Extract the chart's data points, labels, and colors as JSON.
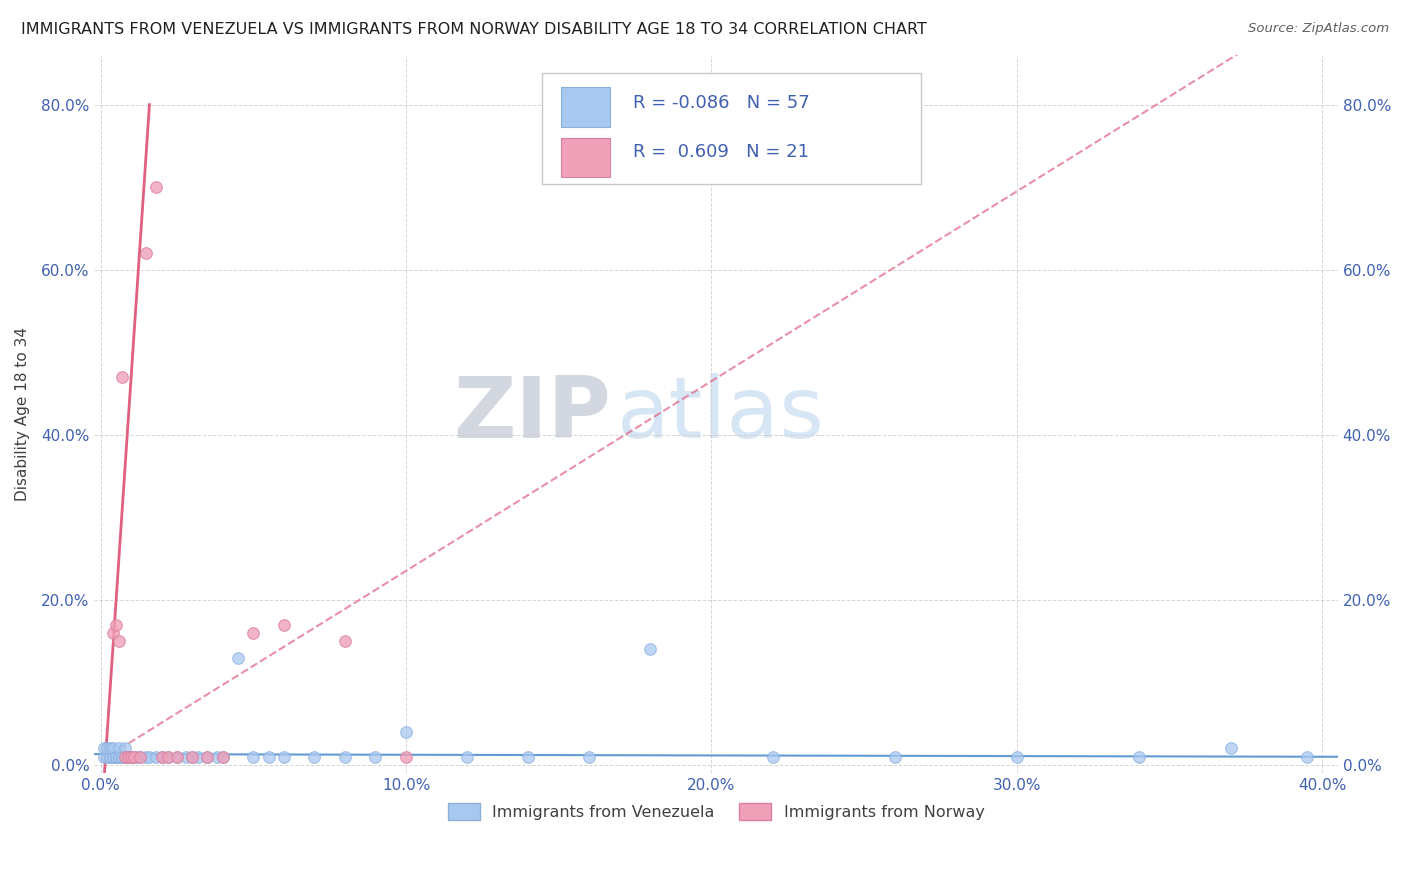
{
  "title": "IMMIGRANTS FROM VENEZUELA VS IMMIGRANTS FROM NORWAY DISABILITY AGE 18 TO 34 CORRELATION CHART",
  "source": "Source: ZipAtlas.com",
  "ylabel": "Disability Age 18 to 34",
  "xlim": [
    -0.002,
    0.405
  ],
  "ylim": [
    -0.01,
    0.86
  ],
  "xticks": [
    0.0,
    0.1,
    0.2,
    0.3,
    0.4
  ],
  "xtick_labels": [
    "0.0%",
    "10.0%",
    "20.0%",
    "30.0%",
    "40.0%"
  ],
  "yticks": [
    0.0,
    0.2,
    0.4,
    0.6,
    0.8
  ],
  "ytick_labels": [
    "0.0%",
    "20.0%",
    "40.0%",
    "60.0%",
    "80.0%"
  ],
  "watermark_zip": "ZIP",
  "watermark_atlas": "atlas",
  "legend_labels": [
    "Immigrants from Venezuela",
    "Immigrants from Norway"
  ],
  "R_venezuela": -0.086,
  "N_venezuela": 57,
  "R_norway": 0.609,
  "N_norway": 21,
  "color_venezuela": "#a8c8f0",
  "color_norway": "#f0a0b8",
  "trendline_venezuela_color": "#5090d0",
  "trendline_norway_color": "#e06080",
  "background_color": "#ffffff",
  "grid_color": "#cccccc",
  "title_color": "#202020",
  "axis_color": "#4060b0",
  "venezuela_x": [
    0.001,
    0.001,
    0.002,
    0.002,
    0.003,
    0.003,
    0.003,
    0.004,
    0.004,
    0.004,
    0.005,
    0.005,
    0.005,
    0.006,
    0.006,
    0.006,
    0.007,
    0.007,
    0.008,
    0.008,
    0.009,
    0.009,
    0.01,
    0.01,
    0.011,
    0.012,
    0.013,
    0.015,
    0.016,
    0.018,
    0.02,
    0.022,
    0.025,
    0.028,
    0.03,
    0.032,
    0.035,
    0.038,
    0.04,
    0.045,
    0.05,
    0.055,
    0.06,
    0.07,
    0.08,
    0.09,
    0.1,
    0.12,
    0.14,
    0.16,
    0.18,
    0.22,
    0.26,
    0.3,
    0.34,
    0.37,
    0.395
  ],
  "venezuela_y": [
    0.01,
    0.02,
    0.01,
    0.02,
    0.01,
    0.01,
    0.02,
    0.01,
    0.01,
    0.02,
    0.01,
    0.01,
    0.01,
    0.01,
    0.01,
    0.02,
    0.01,
    0.01,
    0.01,
    0.02,
    0.01,
    0.01,
    0.01,
    0.01,
    0.01,
    0.01,
    0.01,
    0.01,
    0.01,
    0.01,
    0.01,
    0.01,
    0.01,
    0.01,
    0.01,
    0.01,
    0.01,
    0.01,
    0.01,
    0.13,
    0.01,
    0.01,
    0.01,
    0.01,
    0.01,
    0.01,
    0.04,
    0.01,
    0.01,
    0.01,
    0.14,
    0.01,
    0.01,
    0.01,
    0.01,
    0.02,
    0.01
  ],
  "norway_x": [
    0.004,
    0.005,
    0.006,
    0.007,
    0.008,
    0.009,
    0.01,
    0.011,
    0.013,
    0.015,
    0.018,
    0.02,
    0.022,
    0.025,
    0.03,
    0.035,
    0.04,
    0.05,
    0.06,
    0.08,
    0.1
  ],
  "norway_y": [
    0.16,
    0.17,
    0.15,
    0.47,
    0.01,
    0.01,
    0.01,
    0.01,
    0.01,
    0.62,
    0.7,
    0.01,
    0.01,
    0.01,
    0.01,
    0.01,
    0.01,
    0.16,
    0.17,
    0.15,
    0.01
  ]
}
